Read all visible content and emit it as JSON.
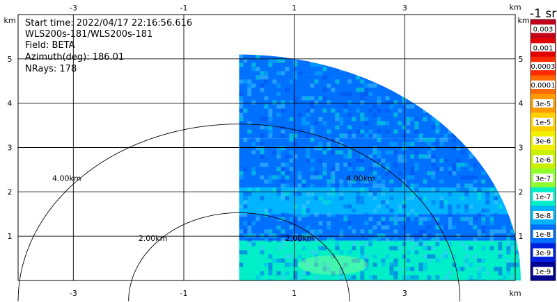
{
  "info": {
    "start_time": "Start time: 2022/04/17 22:16:56.616",
    "instrument": "WLS200s-181/WLS200s-181",
    "field": "Field: BETA",
    "azimuth": "Azimuth(deg): 186.01",
    "nrays": "NRays: 178"
  },
  "colorbar": {
    "title": "-1 sr",
    "labels": [
      "0.003",
      "0.001",
      "0.0003",
      "0.0001",
      "3e-5",
      "1e-5",
      "3e-6",
      "1e-6",
      "3e-7",
      "1e-7",
      "3e-8",
      "1e-8",
      "3e-9",
      "1e-9"
    ],
    "colors": [
      "#c0001a",
      "#e00000",
      "#ff2a00",
      "#ff6a00",
      "#ff9a00",
      "#ffd000",
      "#f0f000",
      "#c8f000",
      "#90ff30",
      "#00eec8",
      "#00b4ff",
      "#0070ff",
      "#0020e0",
      "#000090"
    ]
  },
  "chart_data": {
    "type": "heatmap",
    "field": "BETA",
    "xlabel": "km",
    "ylabel": "km",
    "xlim": [
      -4.0,
      5.0
    ],
    "ylim": [
      0.0,
      6.0
    ],
    "x_ticks": [
      -3,
      -1,
      1,
      3
    ],
    "y_ticks": [
      1,
      2,
      3,
      4,
      5
    ],
    "grid": true,
    "range_rings": [
      {
        "radius": 2.0,
        "label": "2.00km"
      },
      {
        "radius": 4.0,
        "label": "4.00km"
      }
    ],
    "sector": {
      "x_start": 0.0,
      "radius_max": 5.1,
      "angle_start_deg": 0,
      "angle_end_deg": 90
    },
    "data_bands": [
      {
        "y_range": [
          0.0,
          0.9
        ],
        "level": "1e-7"
      },
      {
        "y_range": [
          0.9,
          1.5
        ],
        "level": "1e-8"
      },
      {
        "y_range": [
          1.5,
          2.1
        ],
        "level": "3e-8"
      },
      {
        "y_range": [
          2.1,
          3.2
        ],
        "level": "1e-8"
      },
      {
        "y_range": [
          3.2,
          5.1
        ],
        "level": "1e-8"
      }
    ]
  }
}
